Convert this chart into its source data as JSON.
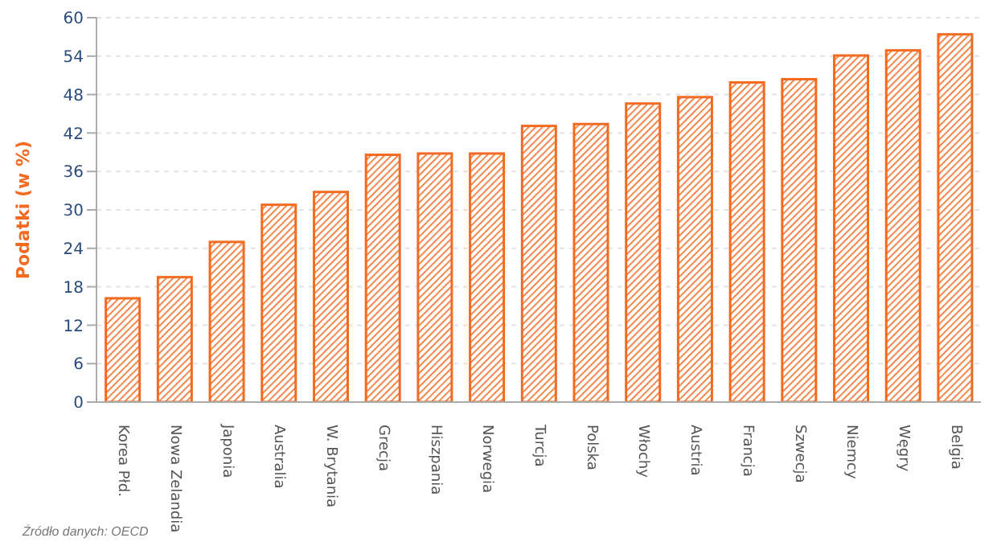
{
  "chart_data": {
    "type": "bar",
    "ylabel": "Podatki (w %)",
    "categories": [
      "Korea Płd.",
      "Nowa Zelandia",
      "Japonia",
      "Australia",
      "W. Brytania",
      "Grecja",
      "Hiszpania",
      "Norwegia",
      "Turcja",
      "Polska",
      "Włochy",
      "Austria",
      "Francja",
      "Szwecja",
      "Niemcy",
      "Węgry",
      "Belgia"
    ],
    "values": [
      16.2,
      19.5,
      25.0,
      30.8,
      32.8,
      38.6,
      38.8,
      38.8,
      43.1,
      43.4,
      46.6,
      47.6,
      49.9,
      50.4,
      54.1,
      54.9,
      57.4
    ],
    "color": "#f26b21",
    "ylim": [
      0,
      60
    ],
    "yticks": [
      0,
      6,
      12,
      18,
      24,
      30,
      36,
      42,
      48,
      54,
      60
    ],
    "grid": "y",
    "annotations": [
      "Źródło danych: OECD"
    ]
  }
}
